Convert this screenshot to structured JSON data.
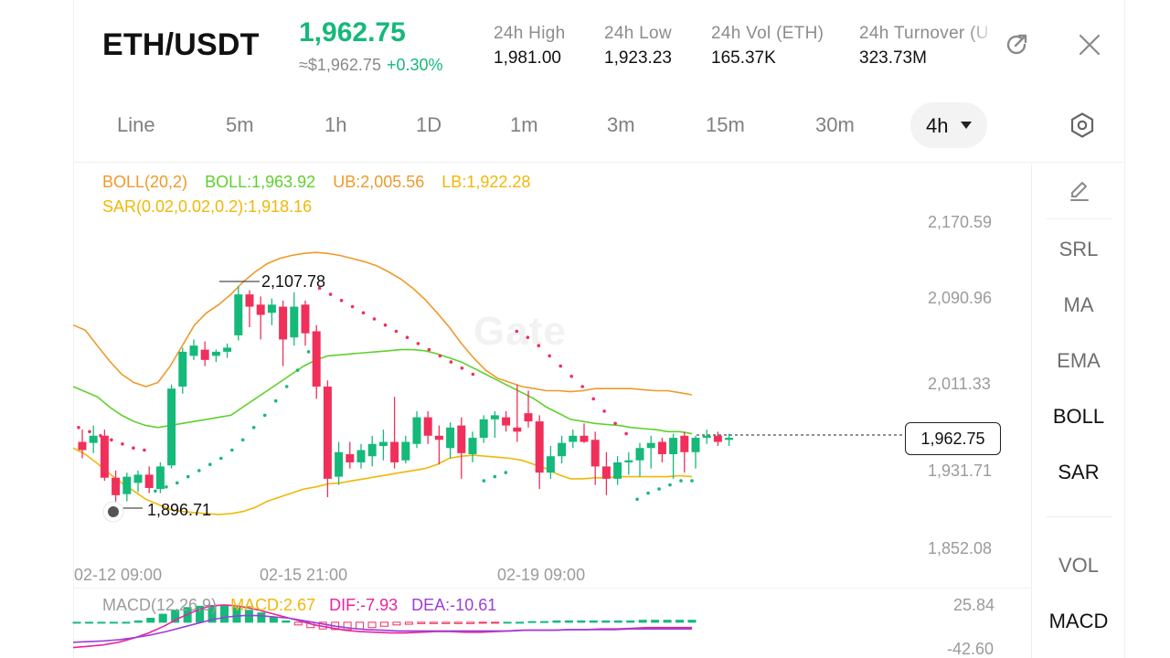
{
  "header": {
    "pair": "ETH/USDT",
    "price": "1,962.75",
    "approx_price": "≈$1,962.75",
    "change": "+0.30%",
    "stats": [
      {
        "label": "24h  High",
        "value": "1,981.00"
      },
      {
        "label": "24h  Low",
        "value": "1,923.23"
      },
      {
        "label": "24h  Vol (ETH)",
        "value": "165.37K"
      },
      {
        "label": "24h  Turnover (U",
        "value": "323.73M"
      }
    ],
    "share_icon": "share-icon",
    "close_icon": "close-icon"
  },
  "timeframes": {
    "items": [
      "Line",
      "5m",
      "1h",
      "1D",
      "1m",
      "3m",
      "15m",
      "30m"
    ],
    "selected": "4h",
    "settings_icon": "hexagon-settings-icon"
  },
  "legend": {
    "boll_name": "BOLL(20,2)",
    "boll_mid": "BOLL:1,963.92",
    "boll_ub": "UB:2,005.56",
    "boll_lb": "LB:1,922.28",
    "sar": "SAR(0.02,0.02,0.2):1,918.16"
  },
  "price_axis": [
    "2,170.59",
    "2,090.96",
    "2,011.33",
    "1,931.71",
    "1,852.08"
  ],
  "time_axis": [
    "02-12 09:00",
    "02-15 21:00",
    "02-19 09:00"
  ],
  "current_price_tag": "1,962.75",
  "high_annotation": "2,107.78",
  "low_annotation": "1,896.71",
  "watermark": "Gate",
  "macd": {
    "name": "MACD(12,26,9)",
    "macd": "MACD:2.67",
    "dif": "DIF:-7.93",
    "dea": "DEA:-10.61",
    "axis": [
      "25.84",
      "-42.60"
    ]
  },
  "side_panel": {
    "edit_icon": "pencil-icon",
    "items": [
      "SRL",
      "MA",
      "EMA",
      "BOLL",
      "SAR",
      "VOL",
      "MACD"
    ],
    "active": [
      "BOLL",
      "SAR",
      "MACD"
    ]
  },
  "colors": {
    "up": "#15b97a",
    "down": "#f0305a",
    "boll_band": "#ee9a2b",
    "boll_lb": "#f2b705",
    "boll_mid": "#5fd12c",
    "sar_up": "#15b97a",
    "sar_down": "#f0305a",
    "dif": "#e8259c",
    "dea": "#9b3fd8"
  },
  "chart_data": {
    "type": "candlestick",
    "interval": "4h",
    "y_range": [
      1852.08,
      2170.59
    ],
    "candles": [
      {
        "o": 1956,
        "h": 1968,
        "l": 1940,
        "c": 1948
      },
      {
        "o": 1955,
        "h": 1972,
        "l": 1945,
        "c": 1962
      },
      {
        "o": 1962,
        "h": 1968,
        "l": 1918,
        "c": 1921
      },
      {
        "o": 1921,
        "h": 1928,
        "l": 1896.71,
        "c": 1904
      },
      {
        "o": 1905,
        "h": 1926,
        "l": 1898,
        "c": 1922
      },
      {
        "o": 1916,
        "h": 1928,
        "l": 1907,
        "c": 1924
      },
      {
        "o": 1924,
        "h": 1932,
        "l": 1906,
        "c": 1911
      },
      {
        "o": 1910,
        "h": 1936,
        "l": 1906,
        "c": 1932
      },
      {
        "o": 1933,
        "h": 2012,
        "l": 1930,
        "c": 2008
      },
      {
        "o": 2010,
        "h": 2048,
        "l": 2003,
        "c": 2044
      },
      {
        "o": 2040,
        "h": 2056,
        "l": 2036,
        "c": 2050
      },
      {
        "o": 2046,
        "h": 2054,
        "l": 2030,
        "c": 2036
      },
      {
        "o": 2040,
        "h": 2046,
        "l": 2034,
        "c": 2044
      },
      {
        "o": 2044,
        "h": 2052,
        "l": 2038,
        "c": 2048
      },
      {
        "o": 2060,
        "h": 2107.78,
        "l": 2055,
        "c": 2100
      },
      {
        "o": 2100,
        "h": 2104,
        "l": 2068,
        "c": 2088
      },
      {
        "o": 2090,
        "h": 2098,
        "l": 2056,
        "c": 2080
      },
      {
        "o": 2082,
        "h": 2096,
        "l": 2070,
        "c": 2090
      },
      {
        "o": 2088,
        "h": 2094,
        "l": 2030,
        "c": 2056
      },
      {
        "o": 2058,
        "h": 2102,
        "l": 2050,
        "c": 2088
      },
      {
        "o": 2090,
        "h": 2094,
        "l": 2050,
        "c": 2062
      },
      {
        "o": 2064,
        "h": 2070,
        "l": 1998,
        "c": 2010
      },
      {
        "o": 2010,
        "h": 2016,
        "l": 1902,
        "c": 1920
      },
      {
        "o": 1922,
        "h": 1956,
        "l": 1914,
        "c": 1946
      },
      {
        "o": 1944,
        "h": 1956,
        "l": 1930,
        "c": 1936
      },
      {
        "o": 1936,
        "h": 1954,
        "l": 1930,
        "c": 1948
      },
      {
        "o": 1942,
        "h": 1962,
        "l": 1932,
        "c": 1954
      },
      {
        "o": 1952,
        "h": 1968,
        "l": 1938,
        "c": 1956
      },
      {
        "o": 1956,
        "h": 2000,
        "l": 1930,
        "c": 1936
      },
      {
        "o": 1938,
        "h": 1962,
        "l": 1935,
        "c": 1956
      },
      {
        "o": 1954,
        "h": 1986,
        "l": 1950,
        "c": 1980
      },
      {
        "o": 1980,
        "h": 1986,
        "l": 1954,
        "c": 1962
      },
      {
        "o": 1962,
        "h": 1972,
        "l": 1934,
        "c": 1958
      },
      {
        "o": 1950,
        "h": 1975,
        "l": 1940,
        "c": 1970
      },
      {
        "o": 1972,
        "h": 1980,
        "l": 1920,
        "c": 1945
      },
      {
        "o": 1944,
        "h": 1966,
        "l": 1936,
        "c": 1960
      },
      {
        "o": 1960,
        "h": 1982,
        "l": 1955,
        "c": 1978
      },
      {
        "o": 1978,
        "h": 1986,
        "l": 1960,
        "c": 1982
      },
      {
        "o": 1980,
        "h": 1986,
        "l": 1966,
        "c": 1972
      },
      {
        "o": 1970,
        "h": 2012,
        "l": 1956,
        "c": 1966
      },
      {
        "o": 1984,
        "h": 2006,
        "l": 1970,
        "c": 1976
      },
      {
        "o": 1976,
        "h": 1982,
        "l": 1910,
        "c": 1926
      },
      {
        "o": 1926,
        "h": 1952,
        "l": 1920,
        "c": 1942
      },
      {
        "o": 1942,
        "h": 1962,
        "l": 1935,
        "c": 1955
      },
      {
        "o": 1956,
        "h": 1968,
        "l": 1950,
        "c": 1962
      },
      {
        "o": 1962,
        "h": 1974,
        "l": 1955,
        "c": 1956
      },
      {
        "o": 1958,
        "h": 1966,
        "l": 1914,
        "c": 1932
      },
      {
        "o": 1932,
        "h": 1946,
        "l": 1904,
        "c": 1920
      },
      {
        "o": 1920,
        "h": 1942,
        "l": 1914,
        "c": 1936
      },
      {
        "o": 1936,
        "h": 1946,
        "l": 1924,
        "c": 1938
      },
      {
        "o": 1938,
        "h": 1955,
        "l": 1922,
        "c": 1950
      },
      {
        "o": 1950,
        "h": 1962,
        "l": 1930,
        "c": 1955
      },
      {
        "o": 1956,
        "h": 1960,
        "l": 1936,
        "c": 1944
      },
      {
        "o": 1944,
        "h": 1964,
        "l": 1920,
        "c": 1960
      },
      {
        "o": 1962,
        "h": 1966,
        "l": 1926,
        "c": 1946
      },
      {
        "o": 1946,
        "h": 1962,
        "l": 1930,
        "c": 1960
      },
      {
        "o": 1960,
        "h": 1968,
        "l": 1954,
        "c": 1962
      },
      {
        "o": 1962,
        "h": 1966,
        "l": 1952,
        "c": 1956
      },
      {
        "o": 1958,
        "h": 1964,
        "l": 1952,
        "c": 1960
      }
    ],
    "boll_ub": [
      2070,
      2065,
      2050,
      2035,
      2022,
      2014,
      2010,
      2014,
      2030,
      2050,
      2070,
      2082,
      2090,
      2100,
      2112,
      2122,
      2130,
      2135,
      2138,
      2140,
      2141,
      2140,
      2138,
      2135,
      2132,
      2128,
      2122,
      2115,
      2106,
      2095,
      2082,
      2068,
      2052,
      2038,
      2026,
      2018,
      2014,
      2010,
      2008,
      2006,
      2006,
      2005,
      2006,
      2008,
      2008,
      2008,
      2008,
      2007,
      2006,
      2006,
      2004,
      2002
    ],
    "boll_mid": [
      2010,
      2005,
      2000,
      1990,
      1982,
      1976,
      1972,
      1970,
      1972,
      1974,
      1976,
      1978,
      1980,
      1982,
      1990,
      1998,
      2006,
      2014,
      2022,
      2030,
      2036,
      2040,
      2041,
      2042,
      2043,
      2044,
      2045,
      2046,
      2046,
      2045,
      2042,
      2038,
      2034,
      2028,
      2022,
      2016,
      2010,
      2004,
      1998,
      1990,
      1984,
      1978,
      1976,
      1974,
      1973,
      1972,
      1970,
      1969,
      1968,
      1966,
      1966,
      1964
    ],
    "boll_lb": [
      1950,
      1944,
      1935,
      1925,
      1916,
      1908,
      1900,
      1895,
      1890,
      1888,
      1887,
      1886,
      1885,
      1886,
      1888,
      1892,
      1898,
      1902,
      1906,
      1910,
      1912,
      1915,
      1916,
      1918,
      1920,
      1922,
      1924,
      1926,
      1928,
      1930,
      1934,
      1940,
      1942,
      1943,
      1942,
      1941,
      1940,
      1938,
      1934,
      1930,
      1924,
      1920,
      1920,
      1921,
      1921,
      1922,
      1922,
      1922,
      1922,
      1922,
      1923,
      1922
    ],
    "sar": [
      1970,
      1966,
      1962,
      1958,
      1954,
      1950,
      1948,
      1908,
      1912,
      1916,
      1922,
      1928,
      1934,
      1940,
      1948,
      1958,
      1970,
      1982,
      1996,
      2010,
      2026,
      2044,
      2106,
      2100,
      2094,
      2088,
      2082,
      2076,
      2070,
      2064,
      2058,
      2052,
      2046,
      2040,
      2034,
      2028,
      2022,
      1918,
      1922,
      1926,
      2064,
      2058,
      2050,
      2040,
      2030,
      2020,
      2010,
      1998,
      1986,
      1974,
      1964,
      1900,
      1906,
      1910,
      1914,
      1918,
      1918
    ],
    "macd_hist": [
      0,
      0,
      0,
      0,
      0,
      2,
      6,
      12,
      18,
      22,
      24,
      25,
      24,
      22,
      18,
      14,
      8,
      2,
      -4,
      -8,
      -10,
      -11,
      -11,
      -10,
      -8,
      -6,
      -4,
      -3,
      -2,
      -2,
      -2,
      -2,
      -2,
      -1,
      -1,
      0,
      0,
      1,
      1,
      2,
      2,
      2,
      2,
      2,
      2,
      2,
      3,
      3,
      3,
      3,
      3
    ],
    "macd_dif": [
      -38,
      -36,
      -34,
      -30,
      -24,
      -16,
      -6,
      6,
      16,
      24,
      26,
      24,
      20,
      14,
      8,
      2,
      -4,
      -8,
      -12,
      -14,
      -15,
      -16,
      -16,
      -15,
      -14,
      -14,
      -15,
      -15,
      -14,
      -13,
      -12,
      -12,
      -12,
      -11,
      -11,
      -10,
      -10,
      -9,
      -8,
      -8,
      -8,
      -8
    ],
    "macd_dea": [
      -30,
      -29,
      -28,
      -26,
      -23,
      -19,
      -14,
      -8,
      -2,
      4,
      8,
      10,
      10,
      8,
      6,
      2,
      -2,
      -6,
      -9,
      -11,
      -12,
      -13,
      -13,
      -13,
      -13,
      -13,
      -13,
      -13,
      -13,
      -12,
      -12,
      -12,
      -11,
      -11,
      -11,
      -11,
      -10,
      -10,
      -10,
      -10,
      -10
    ]
  }
}
